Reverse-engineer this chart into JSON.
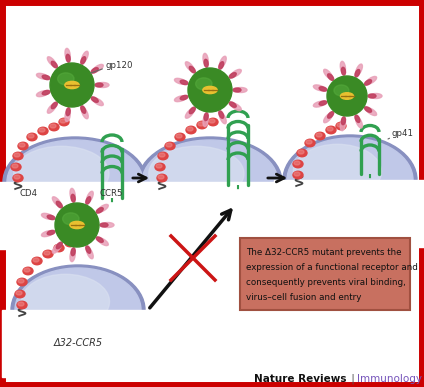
{
  "background_color": "#ffffff",
  "border_color": "#cc0000",
  "virus_green": "#3a8a25",
  "virus_green_highlight": "#5ab040",
  "virus_yellow": "#e8c030",
  "spike_pink_outer": "#d080a0",
  "spike_pink_inner": "#e8a0b8",
  "spike_dark": "#c04060",
  "cd4_color": "#dd4444",
  "cd4_highlight": "#ee8888",
  "ccr5_color": "#30a050",
  "cell_outer": "#8890c0",
  "cell_inner": "#c0c8e8",
  "cell_inner2": "#d8dff0",
  "arrow_color": "#111111",
  "cross_color": "#cc1515",
  "text_box_bg": "#c87060",
  "text_box_border": "#a05040",
  "footer_bold": "Nature Reviews",
  "footer_italic": "Immunology",
  "footer_color_bold": "#111111",
  "footer_color_italic": "#7755bb",
  "label_gp120": "gp120",
  "label_cd4": "CD4",
  "label_ccr5": "CCR5",
  "label_gp41": "gp41",
  "label_delta": "Δ32-CCR5",
  "text_box_line1": "The Δ32-CCR5 mutant prevents the",
  "text_box_line2": "expression of a functional receptor and",
  "text_box_line3": "consequently prevents viral binding,",
  "text_box_line4": "virus–cell fusion and entry",
  "anchor_color": "#444444"
}
